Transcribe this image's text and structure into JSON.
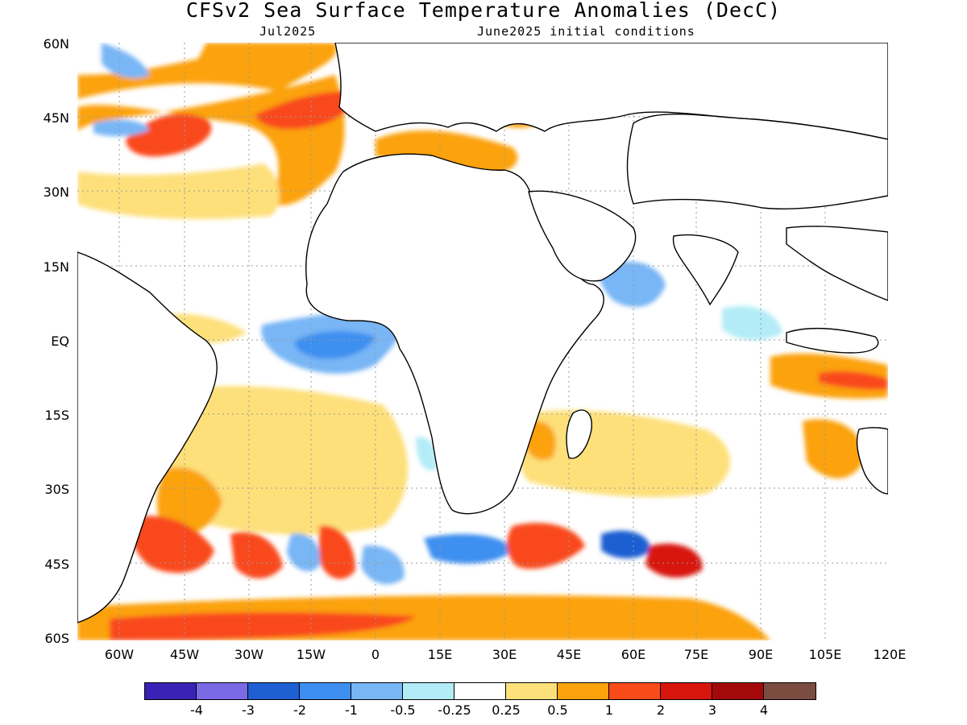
{
  "title": "CFSv2 Sea Surface Temperature Anomalies (DecC)",
  "subtitle_left": "Jul2025",
  "subtitle_right": "June2025 initial conditions",
  "lat_labels": [
    "60N",
    "45N",
    "30N",
    "15N",
    "EQ",
    "15S",
    "30S",
    "45S",
    "60S"
  ],
  "lon_labels": [
    "60W",
    "45W",
    "30W",
    "15W",
    "0",
    "15E",
    "30E",
    "45E",
    "60E",
    "75E",
    "90E",
    "105E",
    "120E"
  ],
  "colorbar": {
    "labels": [
      "-4",
      "-3",
      "-2",
      "-1",
      "-0.5",
      "-0.25",
      "0.25",
      "0.5",
      "1",
      "2",
      "3",
      "4"
    ],
    "colors": [
      "#3a22b6",
      "#7a6ae6",
      "#1e5fd2",
      "#3c8ff0",
      "#78b6f5",
      "#b3ecf7",
      "#ffffff",
      "#fde07a",
      "#fba20c",
      "#f94a1a",
      "#d8150c",
      "#a50a0a",
      "#7a4d40"
    ]
  },
  "colors": {
    "land": "#ffffff",
    "coast": "#000000",
    "grid": "#9a9a9a",
    "warm_weak": "#fde07a",
    "warm": "#fba20c",
    "warm_strong": "#f94a1a",
    "hot": "#d8150c",
    "very_hot": "#a50a0a",
    "cool_weak": "#b3ecf7",
    "cool": "#78b6f5",
    "cold": "#3c8ff0",
    "colder": "#1e5fd2"
  }
}
